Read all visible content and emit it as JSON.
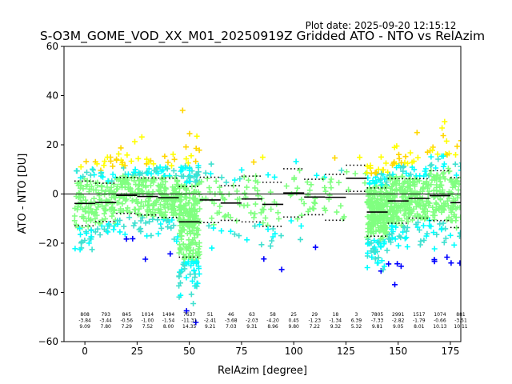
{
  "plot_date": "Plot date: 2025-09-20 12:15:12",
  "chart_data": {
    "type": "scatter",
    "title": "S-O3M_GOME_VOD_XX_M01_20250919Z Gridded ATO - NTO vs RelAzim",
    "xlabel": "RelAzim [degree]",
    "ylabel": "ATO - NTO [DU]",
    "xlim": [
      -10,
      180
    ],
    "ylim": [
      -60,
      60
    ],
    "xticks": [
      0,
      25,
      50,
      75,
      100,
      125,
      150,
      175
    ],
    "yticks": [
      -60,
      -40,
      -20,
      0,
      20,
      40,
      60
    ],
    "colors": {
      "dense": "#80ff80",
      "mid": "#00ffff",
      "mid2": "#40e0d0",
      "high": "#ffff00",
      "high2": "#ffd700",
      "low": "#0000ff",
      "mean_line": "#000000",
      "zero_line": "#000000"
    },
    "bins": [
      {
        "center": 0,
        "count": "808",
        "mean": "-3.84",
        "std": "9.09"
      },
      {
        "center": 10,
        "count": "793",
        "mean": "-3.44",
        "std": "7.80"
      },
      {
        "center": 20,
        "count": "845",
        "mean": "-0.56",
        "std": "7.29"
      },
      {
        "center": 30,
        "count": "1014",
        "mean": "-1.00",
        "std": "7.52"
      },
      {
        "center": 40,
        "count": "1494",
        "mean": "-1.54",
        "std": "8.00"
      },
      {
        "center": 50,
        "count": "7637",
        "mean": "-11.31",
        "std": "14.35"
      },
      {
        "center": 60,
        "count": "51",
        "mean": "-2.41",
        "std": "9.21"
      },
      {
        "center": 70,
        "count": "46",
        "mean": "-3.68",
        "std": "7.03"
      },
      {
        "center": 80,
        "count": "63",
        "mean": "-2.03",
        "std": "9.31"
      },
      {
        "center": 90,
        "count": "58",
        "mean": "-4.20",
        "std": "8.96"
      },
      {
        "center": 100,
        "count": "25",
        "mean": "0.45",
        "std": "9.80"
      },
      {
        "center": 110,
        "count": "29",
        "mean": "-1.23",
        "std": "7.22"
      },
      {
        "center": 120,
        "count": "18",
        "mean": "-1.34",
        "std": "9.32"
      },
      {
        "center": 130,
        "count": "3",
        "mean": "6.39",
        "std": "5.32"
      },
      {
        "center": 140,
        "count": "7805",
        "mean": "-7.33",
        "std": "9.81"
      },
      {
        "center": 150,
        "count": "2991",
        "mean": "-2.82",
        "std": "9.05"
      },
      {
        "center": 160,
        "count": "1517",
        "mean": "-1.79",
        "std": "8.01"
      },
      {
        "center": 170,
        "count": "1074",
        "mean": "-0.66",
        "std": "10.13"
      },
      {
        "center": 180,
        "count": "881",
        "mean": "-3.51",
        "std": "10.11"
      }
    ]
  }
}
